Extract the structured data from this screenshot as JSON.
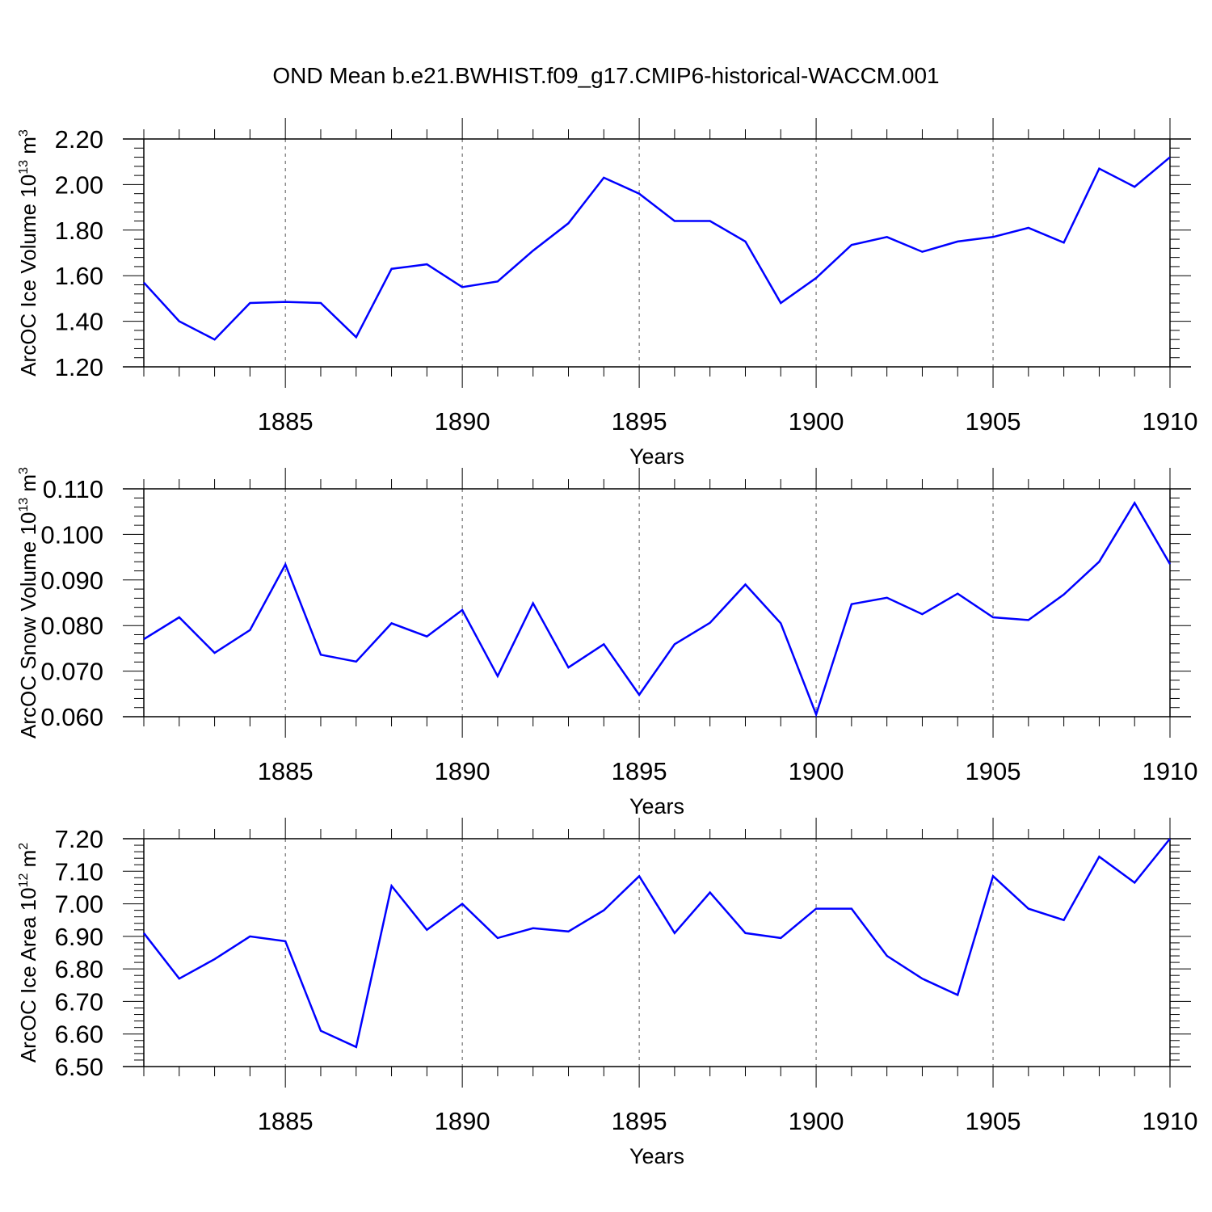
{
  "title": "OND Mean b.e21.BWHIST.f09_g17.CMIP6-historical-WACCM.001",
  "colors": {
    "line": "#0000ff",
    "axis": "#000000",
    "grid": "#555555",
    "background": "#ffffff"
  },
  "chart_data": [
    {
      "type": "line",
      "xlabel": "Years",
      "ylabel_main": "ArcOC Ice Volume 10",
      "ylabel_sup": "13",
      "ylabel_unit": " m",
      "ylabel_unit_sup": "3",
      "xlim": [
        1881,
        1910
      ],
      "ylim": [
        1.2,
        2.2
      ],
      "xticks": [
        "1885",
        "1890",
        "1895",
        "1900",
        "1905",
        "1910"
      ],
      "yticks": [
        "1.20",
        "1.40",
        "1.60",
        "1.80",
        "2.00",
        "2.20"
      ],
      "grid": "vertical dashed at major x ticks",
      "x": [
        1881,
        1882,
        1883,
        1884,
        1885,
        1886,
        1887,
        1888,
        1889,
        1890,
        1891,
        1892,
        1893,
        1894,
        1895,
        1896,
        1897,
        1898,
        1899,
        1900,
        1901,
        1902,
        1903,
        1904,
        1905,
        1906,
        1907,
        1908,
        1909,
        1910
      ],
      "values": [
        1.57,
        1.4,
        1.32,
        1.48,
        1.485,
        1.48,
        1.33,
        1.63,
        1.65,
        1.55,
        1.575,
        1.71,
        1.83,
        2.03,
        1.96,
        1.84,
        1.84,
        1.75,
        1.48,
        1.59,
        1.735,
        1.77,
        1.705,
        1.75,
        1.77,
        1.81,
        1.745,
        2.07,
        1.99,
        2.12
      ]
    },
    {
      "type": "line",
      "xlabel": "Years",
      "ylabel_main": "ArcOC Snow Volume 10",
      "ylabel_sup": "13",
      "ylabel_unit": " m",
      "ylabel_unit_sup": "3",
      "xlim": [
        1881,
        1910
      ],
      "ylim": [
        0.06,
        0.11
      ],
      "xticks": [
        "1885",
        "1890",
        "1895",
        "1900",
        "1905",
        "1910"
      ],
      "yticks": [
        "0.060",
        "0.070",
        "0.080",
        "0.090",
        "0.100",
        "0.110"
      ],
      "grid": "vertical dashed at major x ticks",
      "x": [
        1881,
        1882,
        1883,
        1884,
        1885,
        1886,
        1887,
        1888,
        1889,
        1890,
        1891,
        1892,
        1893,
        1894,
        1895,
        1896,
        1897,
        1898,
        1899,
        1900,
        1901,
        1902,
        1903,
        1904,
        1905,
        1906,
        1907,
        1908,
        1909,
        1910
      ],
      "values": [
        0.077,
        0.0818,
        0.074,
        0.079,
        0.0934,
        0.0736,
        0.0721,
        0.0805,
        0.0776,
        0.0834,
        0.0689,
        0.0849,
        0.0708,
        0.0759,
        0.0648,
        0.0759,
        0.0806,
        0.089,
        0.0805,
        0.0605,
        0.0847,
        0.0861,
        0.0825,
        0.087,
        0.0818,
        0.0812,
        0.0868,
        0.094,
        0.1069,
        0.0935
      ]
    },
    {
      "type": "line",
      "xlabel": "Years",
      "ylabel_main": "ArcOC Ice Area 10",
      "ylabel_sup": "12",
      "ylabel_unit": " m",
      "ylabel_unit_sup": "2",
      "xlim": [
        1881,
        1910
      ],
      "ylim": [
        6.5,
        7.2
      ],
      "xticks": [
        "1885",
        "1890",
        "1895",
        "1900",
        "1905",
        "1910"
      ],
      "yticks": [
        "6.50",
        "6.60",
        "6.70",
        "6.80",
        "6.90",
        "7.00",
        "7.10",
        "7.20"
      ],
      "grid": "vertical dashed at major x ticks",
      "x": [
        1881,
        1882,
        1883,
        1884,
        1885,
        1886,
        1887,
        1888,
        1889,
        1890,
        1891,
        1892,
        1893,
        1894,
        1895,
        1896,
        1897,
        1898,
        1899,
        1900,
        1901,
        1902,
        1903,
        1904,
        1905,
        1906,
        1907,
        1908,
        1909,
        1910
      ],
      "values": [
        6.91,
        6.77,
        6.83,
        6.9,
        6.885,
        6.61,
        6.56,
        7.055,
        6.92,
        7.0,
        6.895,
        6.925,
        6.915,
        6.98,
        7.085,
        6.91,
        7.035,
        6.91,
        6.895,
        6.985,
        6.985,
        6.84,
        6.77,
        6.72,
        7.085,
        6.985,
        6.95,
        7.145,
        7.065,
        7.2
      ]
    }
  ]
}
